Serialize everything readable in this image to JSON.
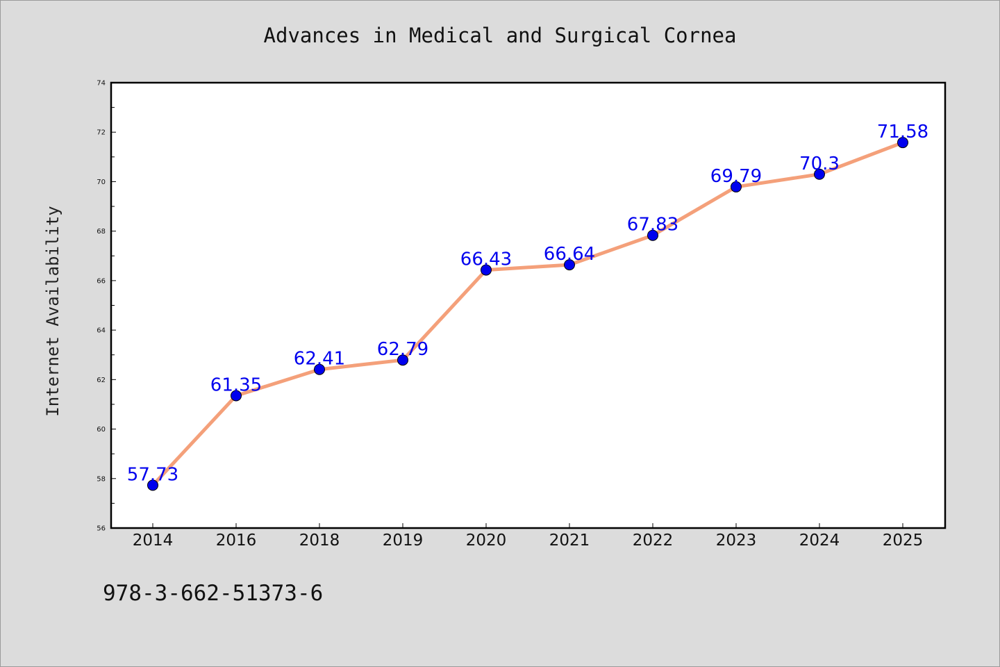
{
  "chart_data": {
    "type": "line",
    "title": "Advances in Medical and Surgical Cornea",
    "ylabel": "Internet Availability",
    "xlabel": "",
    "categories": [
      "2014",
      "2016",
      "2018",
      "2019",
      "2020",
      "2021",
      "2022",
      "2023",
      "2024",
      "2025"
    ],
    "series": [
      {
        "values": [
          57.73,
          61.35,
          62.41,
          62.79,
          66.43,
          66.64,
          67.83,
          69.79,
          70.3,
          71.58
        ],
        "data_labels": [
          "57.73",
          "61.35",
          "62.41",
          "62.79",
          "66.43",
          "66.64",
          "67.83",
          "69.79",
          "70.3",
          "71.58"
        ]
      }
    ],
    "ylim": [
      56,
      74
    ],
    "y_ticks": [
      "56",
      "58",
      "60",
      "62",
      "64",
      "66",
      "68",
      "70",
      "72",
      "74"
    ],
    "grid": false,
    "line_color": "#f4a07a",
    "marker_color": "#0000ee",
    "label_color": "#0000ee"
  },
  "footer": {
    "isbn": "978-3-662-51373-6"
  }
}
